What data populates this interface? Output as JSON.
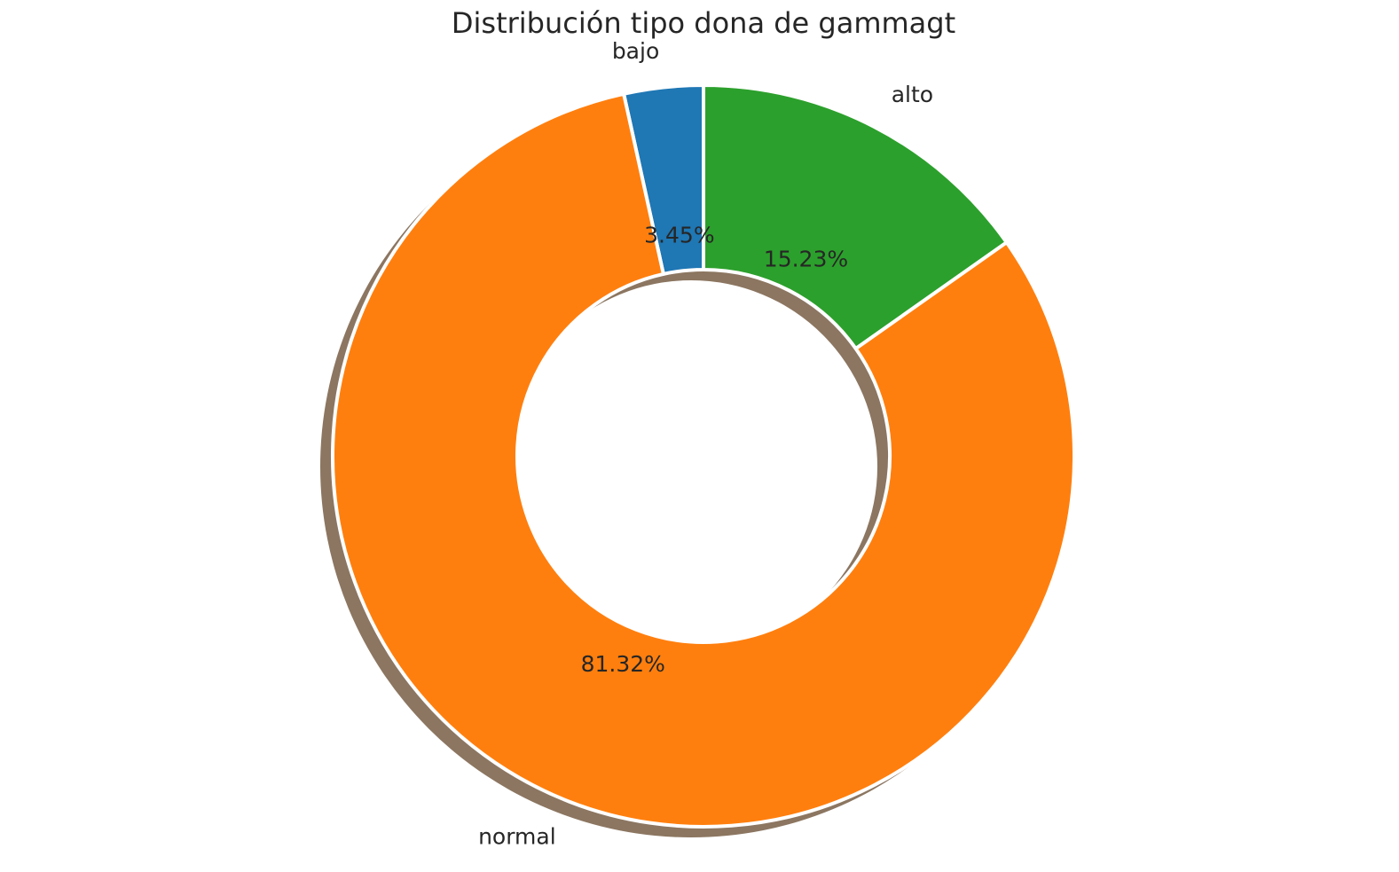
{
  "chart_data": {
    "type": "pie",
    "variant": "donut",
    "title": "Distribución tipo dona de gammagt",
    "categories": [
      "bajo",
      "alto",
      "normal"
    ],
    "values": [
      3.45,
      15.23,
      81.32
    ],
    "percent_labels": [
      "3.45%",
      "15.23%",
      "81.32%"
    ],
    "colors": [
      "#1f77b4",
      "#2ca02c",
      "#ff7f0e"
    ],
    "shadow_color": "#8c7661",
    "start_angle_deg": 90,
    "direction": "clockwise",
    "legend": "none",
    "grid": false
  }
}
